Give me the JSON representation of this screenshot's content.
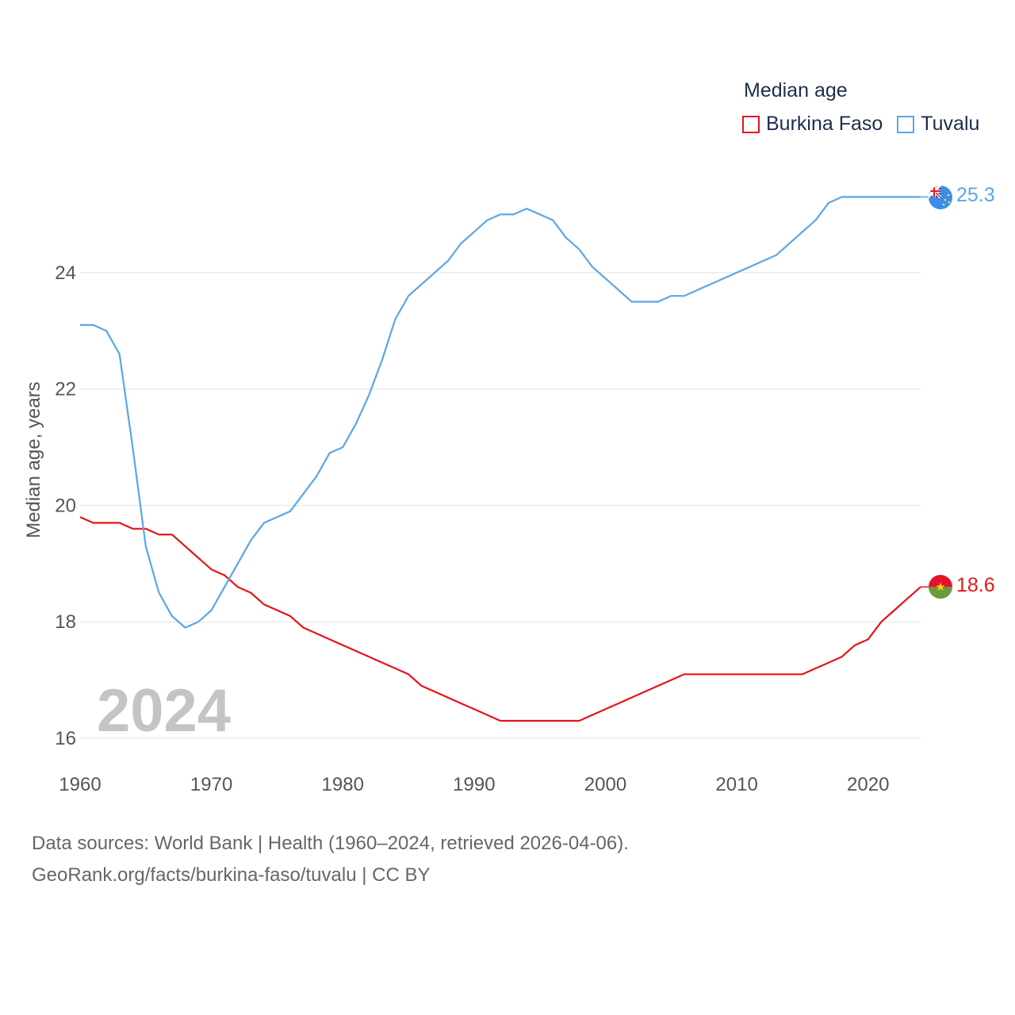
{
  "legend": {
    "title": "Median age",
    "items": [
      {
        "label": "Burkina Faso",
        "color": "#e8131b"
      },
      {
        "label": "Tuvalu",
        "color": "#5ba6e8"
      }
    ]
  },
  "footer": {
    "line1": "Data sources: World Bank | Health (1960–2024, retrieved 2026-04-06).",
    "line2": "GeoRank.org/facts/burkina-faso/tuvalu | CC BY"
  },
  "chart_data": {
    "type": "line",
    "title": "Median age",
    "xlabel": "",
    "ylabel": "Median age, years",
    "current_year_label": "2024",
    "xlim": [
      1960,
      2024
    ],
    "ylim": [
      16,
      26
    ],
    "x_ticks": [
      "1960",
      "1970",
      "1980",
      "1990",
      "2000",
      "2010",
      "2020"
    ],
    "y_ticks": [
      "16",
      "18",
      "20",
      "22",
      "24"
    ],
    "grid": true,
    "legend_position": "top-right",
    "x": [
      1960,
      1961,
      1962,
      1963,
      1964,
      1965,
      1966,
      1967,
      1968,
      1969,
      1970,
      1971,
      1972,
      1973,
      1974,
      1975,
      1976,
      1977,
      1978,
      1979,
      1980,
      1981,
      1982,
      1983,
      1984,
      1985,
      1986,
      1987,
      1988,
      1989,
      1990,
      1991,
      1992,
      1993,
      1994,
      1995,
      1996,
      1997,
      1998,
      1999,
      2000,
      2001,
      2002,
      2003,
      2004,
      2005,
      2006,
      2007,
      2008,
      2009,
      2010,
      2011,
      2012,
      2013,
      2014,
      2015,
      2016,
      2017,
      2018,
      2019,
      2020,
      2021,
      2022,
      2023,
      2024
    ],
    "series": [
      {
        "name": "Burkina Faso",
        "color": "#e8131b",
        "end_label": "18.6",
        "values": [
          19.8,
          19.7,
          19.7,
          19.7,
          19.6,
          19.6,
          19.5,
          19.5,
          19.3,
          19.1,
          18.9,
          18.8,
          18.6,
          18.5,
          18.3,
          18.2,
          18.1,
          17.9,
          17.8,
          17.7,
          17.6,
          17.5,
          17.4,
          17.3,
          17.2,
          17.1,
          16.9,
          16.8,
          16.7,
          16.6,
          16.5,
          16.4,
          16.3,
          16.3,
          16.3,
          16.3,
          16.3,
          16.3,
          16.3,
          16.4,
          16.5,
          16.6,
          16.7,
          16.8,
          16.9,
          17.0,
          17.1,
          17.1,
          17.1,
          17.1,
          17.1,
          17.1,
          17.1,
          17.1,
          17.1,
          17.1,
          17.2,
          17.3,
          17.4,
          17.6,
          17.7,
          18.0,
          18.2,
          18.4,
          18.6
        ]
      },
      {
        "name": "Tuvalu",
        "color": "#5ba6e8",
        "end_label": "25.3",
        "values": [
          23.1,
          23.1,
          23.0,
          22.6,
          21.0,
          19.3,
          18.5,
          18.1,
          17.9,
          18.0,
          18.2,
          18.6,
          19.0,
          19.4,
          19.7,
          19.8,
          19.9,
          20.2,
          20.5,
          20.9,
          21.0,
          21.4,
          21.9,
          22.5,
          23.2,
          23.6,
          23.8,
          24.0,
          24.2,
          24.5,
          24.7,
          24.9,
          25.0,
          25.0,
          25.1,
          25.0,
          24.9,
          24.6,
          24.4,
          24.1,
          23.9,
          23.7,
          23.5,
          23.5,
          23.5,
          23.6,
          23.6,
          23.7,
          23.8,
          23.9,
          24.0,
          24.1,
          24.2,
          24.3,
          24.5,
          24.7,
          24.9,
          25.2,
          25.3,
          25.3,
          25.3,
          25.3,
          25.3,
          25.3,
          25.3
        ]
      }
    ]
  }
}
